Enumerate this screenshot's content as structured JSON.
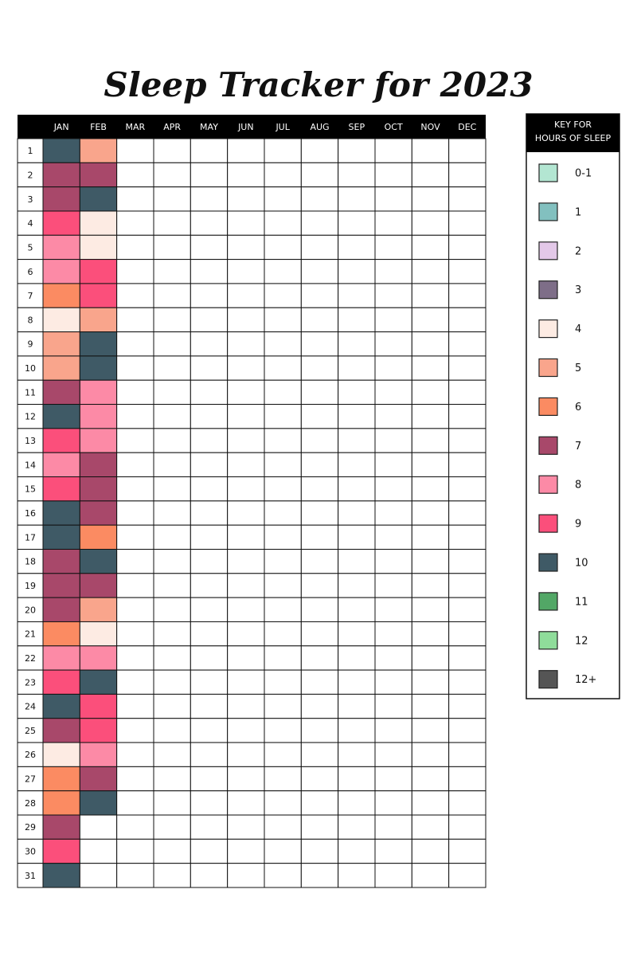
{
  "title": "Sleep Tracker for 2023",
  "table": {
    "months": [
      "JAN",
      "FEB",
      "MAR",
      "APR",
      "MAY",
      "JUN",
      "JUL",
      "AUG",
      "SEP",
      "OCT",
      "NOV",
      "DEC"
    ],
    "days": [
      1,
      2,
      3,
      4,
      5,
      6,
      7,
      8,
      9,
      10,
      11,
      12,
      13,
      14,
      15,
      16,
      17,
      18,
      19,
      20,
      21,
      22,
      23,
      24,
      25,
      26,
      27,
      28,
      29,
      30,
      31
    ],
    "records": [
      [
        "10",
        "7",
        "7",
        "9",
        "8",
        "8",
        "6",
        "4",
        "5",
        "5",
        "7",
        "10",
        "9",
        "8",
        "9",
        "10",
        "10",
        "7",
        "7",
        "7",
        "6",
        "8",
        "9",
        "10",
        "7",
        "4",
        "6",
        "6",
        "7",
        "9",
        "10"
      ],
      [
        "5",
        "7",
        "10",
        "4",
        "4",
        "9",
        "9",
        "5",
        "10",
        "10",
        "8",
        "8",
        "8",
        "7",
        "7",
        "7",
        "6",
        "10",
        "7",
        "5",
        "4",
        "8",
        "10",
        "9",
        "9",
        "8",
        "7",
        "10",
        null,
        null,
        null
      ]
    ]
  },
  "key": {
    "title": [
      "KEY FOR",
      "HOURS OF SLEEP"
    ],
    "entries": [
      {
        "label": "0-1",
        "color": "#b3e6d2"
      },
      {
        "label": "1",
        "color": "#82c0bf"
      },
      {
        "label": "2",
        "color": "#e3c8e8"
      },
      {
        "label": "3",
        "color": "#7e6e88"
      },
      {
        "label": "4",
        "color": "#fdebe3"
      },
      {
        "label": "5",
        "color": "#f9a58c"
      },
      {
        "label": "6",
        "color": "#fb8b62"
      },
      {
        "label": "7",
        "color": "#a8486a"
      },
      {
        "label": "8",
        "color": "#fc8aa6"
      },
      {
        "label": "9",
        "color": "#fb4f7b"
      },
      {
        "label": "10",
        "color": "#3f5a66"
      },
      {
        "label": "11",
        "color": "#52a766"
      },
      {
        "label": "12",
        "color": "#8fdc9a"
      },
      {
        "label": "12+",
        "color": "#555555"
      }
    ]
  }
}
